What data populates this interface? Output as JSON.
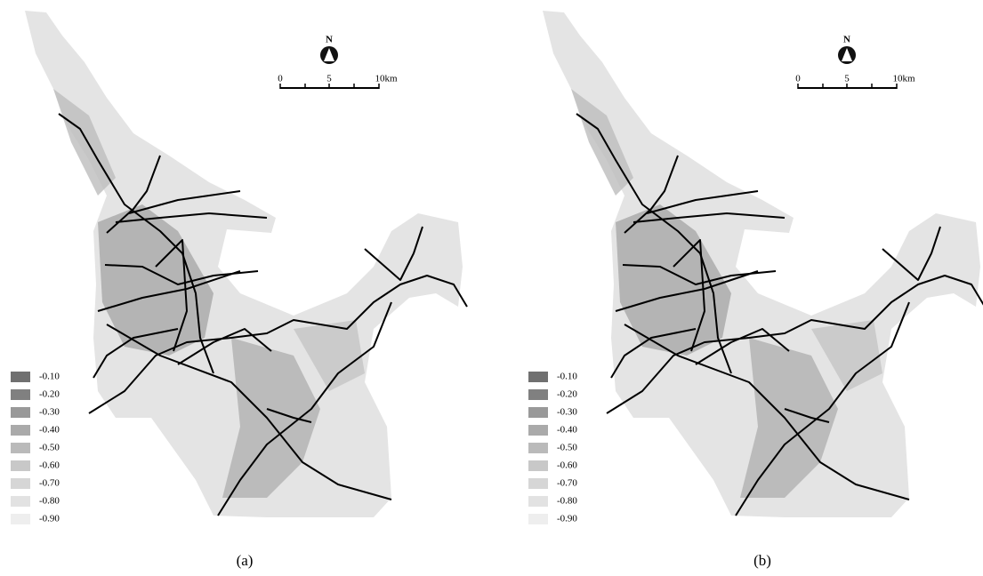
{
  "panels": [
    {
      "caption": "(a)",
      "north": "N",
      "scale": [
        "0",
        "5",
        "10km"
      ],
      "legend": [
        {
          "label": "-0.10",
          "color": "#707070"
        },
        {
          "label": "-0.20",
          "color": "#808080"
        },
        {
          "label": "-0.30",
          "color": "#999999"
        },
        {
          "label": "-0.40",
          "color": "#aaaaaa"
        },
        {
          "label": "-0.50",
          "color": "#bababa"
        },
        {
          "label": "-0.60",
          "color": "#c8c8c8"
        },
        {
          "label": "-0.70",
          "color": "#d6d6d6"
        },
        {
          "label": "-0.80",
          "color": "#e2e2e2"
        },
        {
          "label": "-0.90",
          "color": "#eeeeee"
        }
      ]
    },
    {
      "caption": "(b)",
      "north": "N",
      "scale": [
        "0",
        "5",
        "10km"
      ],
      "legend": [
        {
          "label": "-0.10",
          "color": "#707070"
        },
        {
          "label": "-0.20",
          "color": "#808080"
        },
        {
          "label": "-0.30",
          "color": "#999999"
        },
        {
          "label": "-0.40",
          "color": "#aaaaaa"
        },
        {
          "label": "-0.50",
          "color": "#bababa"
        },
        {
          "label": "-0.60",
          "color": "#c8c8c8"
        },
        {
          "label": "-0.70",
          "color": "#d6d6d6"
        },
        {
          "label": "-0.80",
          "color": "#e2e2e2"
        },
        {
          "label": "-0.90",
          "color": "#eeeeee"
        }
      ]
    }
  ]
}
